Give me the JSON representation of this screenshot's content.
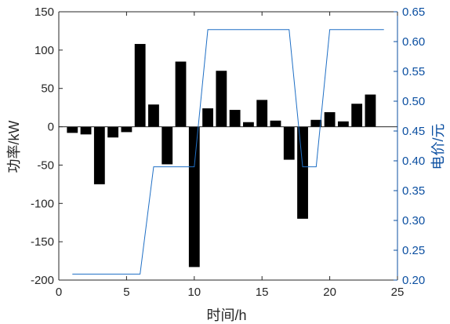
{
  "chart_data": {
    "type": "bar",
    "title": "",
    "xlabel": "时间/h",
    "ylabel": "功率/kW",
    "y2label": "电价/元",
    "xlim": [
      0,
      25
    ],
    "ylim": [
      -200,
      150
    ],
    "y2lim": [
      0.2,
      0.65
    ],
    "xticks": [
      "0",
      "5",
      "10",
      "15",
      "20",
      "25"
    ],
    "yticks": [
      "-200",
      "-150",
      "-100",
      "-50",
      "0",
      "50",
      "100",
      "150"
    ],
    "y2ticks": [
      "0.20",
      "0.25",
      "0.30",
      "0.35",
      "0.40",
      "0.45",
      "0.50",
      "0.55",
      "0.60",
      "0.65"
    ],
    "grid": false,
    "bar_color": "#000000",
    "line_color": "#1f6fc5",
    "right_axis_color": "#0b4fa1",
    "series": [
      {
        "type": "bar",
        "axis": "left",
        "x": [
          1,
          2,
          3,
          4,
          5,
          6,
          7,
          8,
          9,
          10,
          11,
          12,
          13,
          14,
          15,
          16,
          17,
          18,
          19,
          20,
          21,
          22,
          23
        ],
        "values": [
          -8,
          -10,
          -75,
          -14,
          -7,
          108,
          29,
          -49,
          85,
          -183,
          24,
          73,
          22,
          6,
          35,
          8,
          -43,
          -120,
          9,
          19,
          7,
          30,
          42
        ]
      },
      {
        "type": "line",
        "axis": "right",
        "x": [
          1,
          6,
          7,
          10,
          11,
          17,
          18,
          19,
          20,
          24
        ],
        "values": [
          0.21,
          0.21,
          0.39,
          0.39,
          0.62,
          0.62,
          0.39,
          0.39,
          0.62,
          0.62
        ]
      }
    ]
  }
}
